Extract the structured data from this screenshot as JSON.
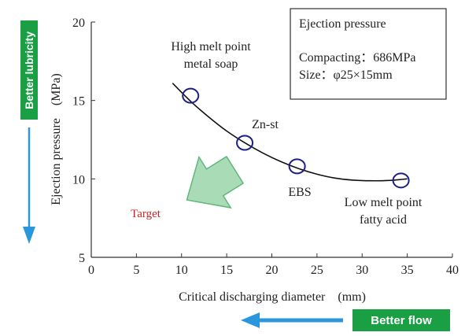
{
  "chart_data": {
    "type": "scatter",
    "title": "",
    "xlabel": "Critical discharging diameter　(mm)",
    "ylabel": "Ejection pressure　(MPa)",
    "xlim": [
      0,
      40
    ],
    "ylim": [
      5,
      20
    ],
    "xticks": [
      0,
      5,
      10,
      15,
      20,
      25,
      30,
      35,
      40
    ],
    "yticks": [
      5,
      10,
      15,
      20
    ],
    "grid": false,
    "points": [
      {
        "label": "High melt point metal soap",
        "label_lines": [
          "High melt point",
          "metal soap"
        ],
        "x": 11,
        "y": 15.3
      },
      {
        "label": "Zn-st",
        "label_lines": [
          "Zn-st"
        ],
        "x": 17,
        "y": 12.3
      },
      {
        "label": "EBS",
        "label_lines": [
          "EBS"
        ],
        "x": 22.8,
        "y": 10.8
      },
      {
        "label": "Low melt point fatty acid",
        "label_lines": [
          "Low melt point",
          "fatty acid"
        ],
        "x": 34.3,
        "y": 9.9
      }
    ],
    "trend_curve": [
      [
        9,
        16.1
      ],
      [
        11,
        14.95
      ],
      [
        13,
        13.95
      ],
      [
        15,
        13.05
      ],
      [
        17,
        12.3
      ],
      [
        19,
        11.65
      ],
      [
        21,
        11.1
      ],
      [
        23,
        10.65
      ],
      [
        25,
        10.3
      ],
      [
        27,
        10.05
      ],
      [
        29,
        9.92
      ],
      [
        31,
        9.88
      ],
      [
        33,
        9.9
      ],
      [
        35,
        10.0
      ]
    ],
    "legend_box": {
      "title": "Ejection pressure",
      "lines": [
        "Compacting：686MPa",
        "Size：φ25×15mm"
      ]
    },
    "target_label": "Target"
  },
  "badges": {
    "lubricity": "Better lubricity",
    "flow": "Better flow"
  },
  "colors": {
    "marker": "#1c1f86",
    "curve": "#111111",
    "axis": "#333333",
    "target_text": "#cc2222",
    "target_arrow_fill": "#a9dcb6",
    "target_arrow_stroke": "#5fb77d",
    "badge_bg": "#1a9f45",
    "direction_arrow": "#2a97dc"
  }
}
